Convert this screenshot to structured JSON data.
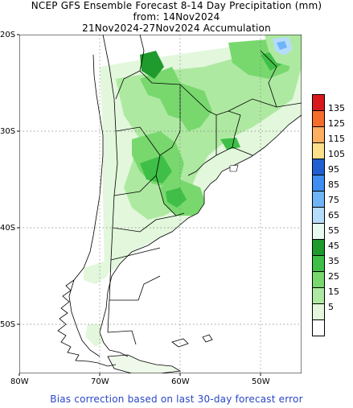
{
  "title": {
    "line1": "NCEP GFS Ensemble Forecast 8-14 Day Precipitation (mm)",
    "line2": "from: 14Nov2024",
    "line3": "21Nov2024-27Nov2024 Accumulation"
  },
  "lat_labels": [
    "20S",
    "30S",
    "40S",
    "50S"
  ],
  "lon_labels": [
    "80W",
    "70W",
    "60W",
    "50W"
  ],
  "legend": {
    "levels": [
      "135",
      "125",
      "115",
      "105",
      "95",
      "85",
      "75",
      "65",
      "55",
      "45",
      "35",
      "25",
      "15",
      "5"
    ],
    "colors": [
      "#d7191c",
      "#f46d2a",
      "#fdae61",
      "#fee08b",
      "#1f5fd0",
      "#3d8ef0",
      "#6fb4f7",
      "#b6dcfb",
      "#e8fbf0",
      "#1f9a2c",
      "#3fbf47",
      "#78d86e",
      "#aee9a1",
      "#e2f7dc",
      "#ffffff"
    ]
  },
  "footer": "Bias correction based on last 30-day forecast error"
}
